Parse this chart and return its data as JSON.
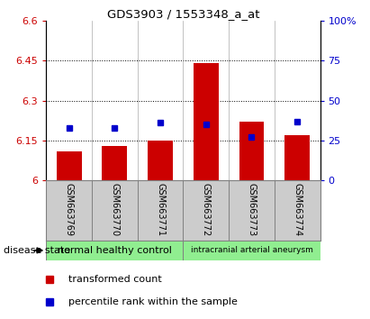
{
  "title": "GDS3903 / 1553348_a_at",
  "samples": [
    "GSM663769",
    "GSM663770",
    "GSM663771",
    "GSM663772",
    "GSM663773",
    "GSM663774"
  ],
  "bar_values": [
    6.11,
    6.13,
    6.15,
    6.44,
    6.22,
    6.17
  ],
  "bar_base": 6.0,
  "percentile_values": [
    33,
    33,
    36,
    35,
    27,
    37
  ],
  "ylim_left": [
    6.0,
    6.6
  ],
  "ylim_right": [
    0,
    100
  ],
  "yticks_left": [
    6.0,
    6.15,
    6.3,
    6.45,
    6.6
  ],
  "yticks_right": [
    0,
    25,
    50,
    75,
    100
  ],
  "ytick_labels_left": [
    "6",
    "6.15",
    "6.3",
    "6.45",
    "6.6"
  ],
  "ytick_labels_right": [
    "0",
    "25",
    "50",
    "75",
    "100%"
  ],
  "bar_color": "#cc0000",
  "dot_color": "#0000cc",
  "group1_label": "normal healthy control",
  "group1_span": [
    0,
    2
  ],
  "group2_label": "intracranial arterial aneurysm",
  "group2_span": [
    3,
    5
  ],
  "group_color": "#90ee90",
  "disease_state_label": "disease state",
  "legend_bar_label": "transformed count",
  "legend_dot_label": "percentile rank within the sample",
  "sample_label_bg": "#cccccc"
}
